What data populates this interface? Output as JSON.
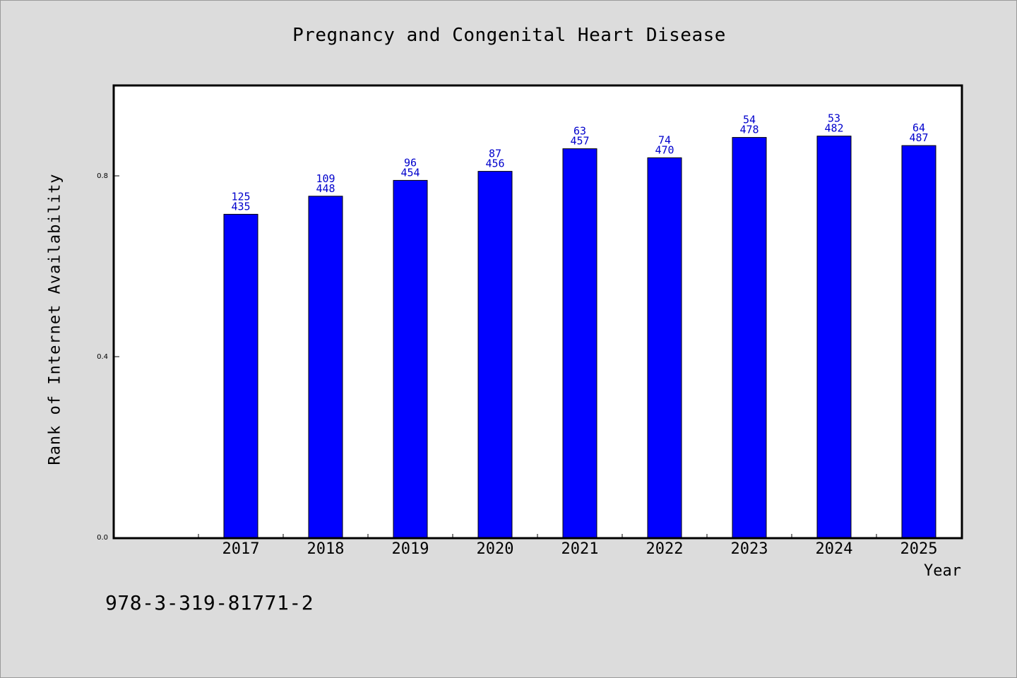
{
  "chart_data": {
    "type": "bar",
    "title": "Pregnancy and Congenital Heart Disease",
    "xlabel": "Year",
    "ylabel": "Rank of Internet Availability",
    "categories": [
      "2017",
      "2018",
      "2019",
      "2020",
      "2021",
      "2022",
      "2023",
      "2024",
      "2025"
    ],
    "series": [
      {
        "values": [
          0.715,
          0.755,
          0.79,
          0.81,
          0.86,
          0.84,
          0.885,
          0.888,
          0.867
        ],
        "color": "#0000ff",
        "labels_top": [
          "125",
          "109",
          "96",
          "87",
          "63",
          "74",
          "54",
          "53",
          "64"
        ],
        "labels_bottom": [
          "435",
          "448",
          "454",
          "456",
          "457",
          "470",
          "478",
          "482",
          "487"
        ]
      }
    ],
    "yticks": [
      0.0,
      0.4,
      0.8
    ],
    "ytick_labels": [
      "0.0",
      "0.4",
      "0.8"
    ],
    "ylim": [
      0.0,
      1.0
    ],
    "grid": false,
    "legend": "none"
  },
  "footer": {
    "isbn": "978-3-319-81771-2"
  },
  "colors": {
    "background": "#dcdcdc",
    "plot_background": "#ffffff",
    "bar": "#0000ff",
    "data_label": "#0000cc"
  }
}
